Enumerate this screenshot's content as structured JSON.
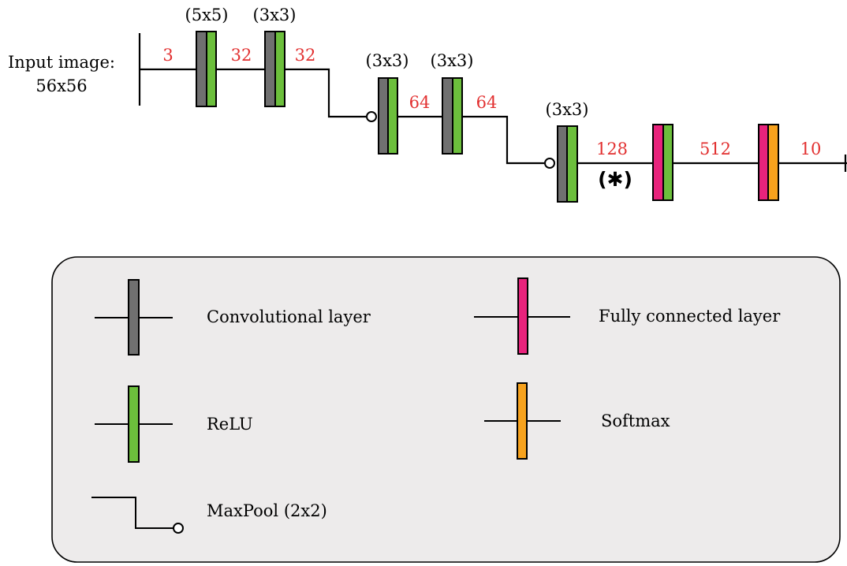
{
  "input_label": {
    "line1": "Input image:",
    "line2": "56x56"
  },
  "kernels": [
    "(5x5)",
    "(3x3)",
    "(3x3)",
    "(3x3)",
    "(3x3)"
  ],
  "channels": [
    "3",
    "32",
    "32",
    "64",
    "64",
    "128",
    "512",
    "10"
  ],
  "marker": "(✱)",
  "legend": {
    "conv": "Convolutional layer",
    "fc": "Fully connected layer",
    "relu": "ReLU",
    "softmax": "Softmax",
    "maxpool": "MaxPool (2x2)"
  },
  "colors": {
    "conv": "#707070",
    "relu": "#6cbf3c",
    "fc": "#e8237c",
    "softmax": "#f7a21d",
    "channel_text": "#e23030",
    "legend_bg": "#edebeb"
  }
}
